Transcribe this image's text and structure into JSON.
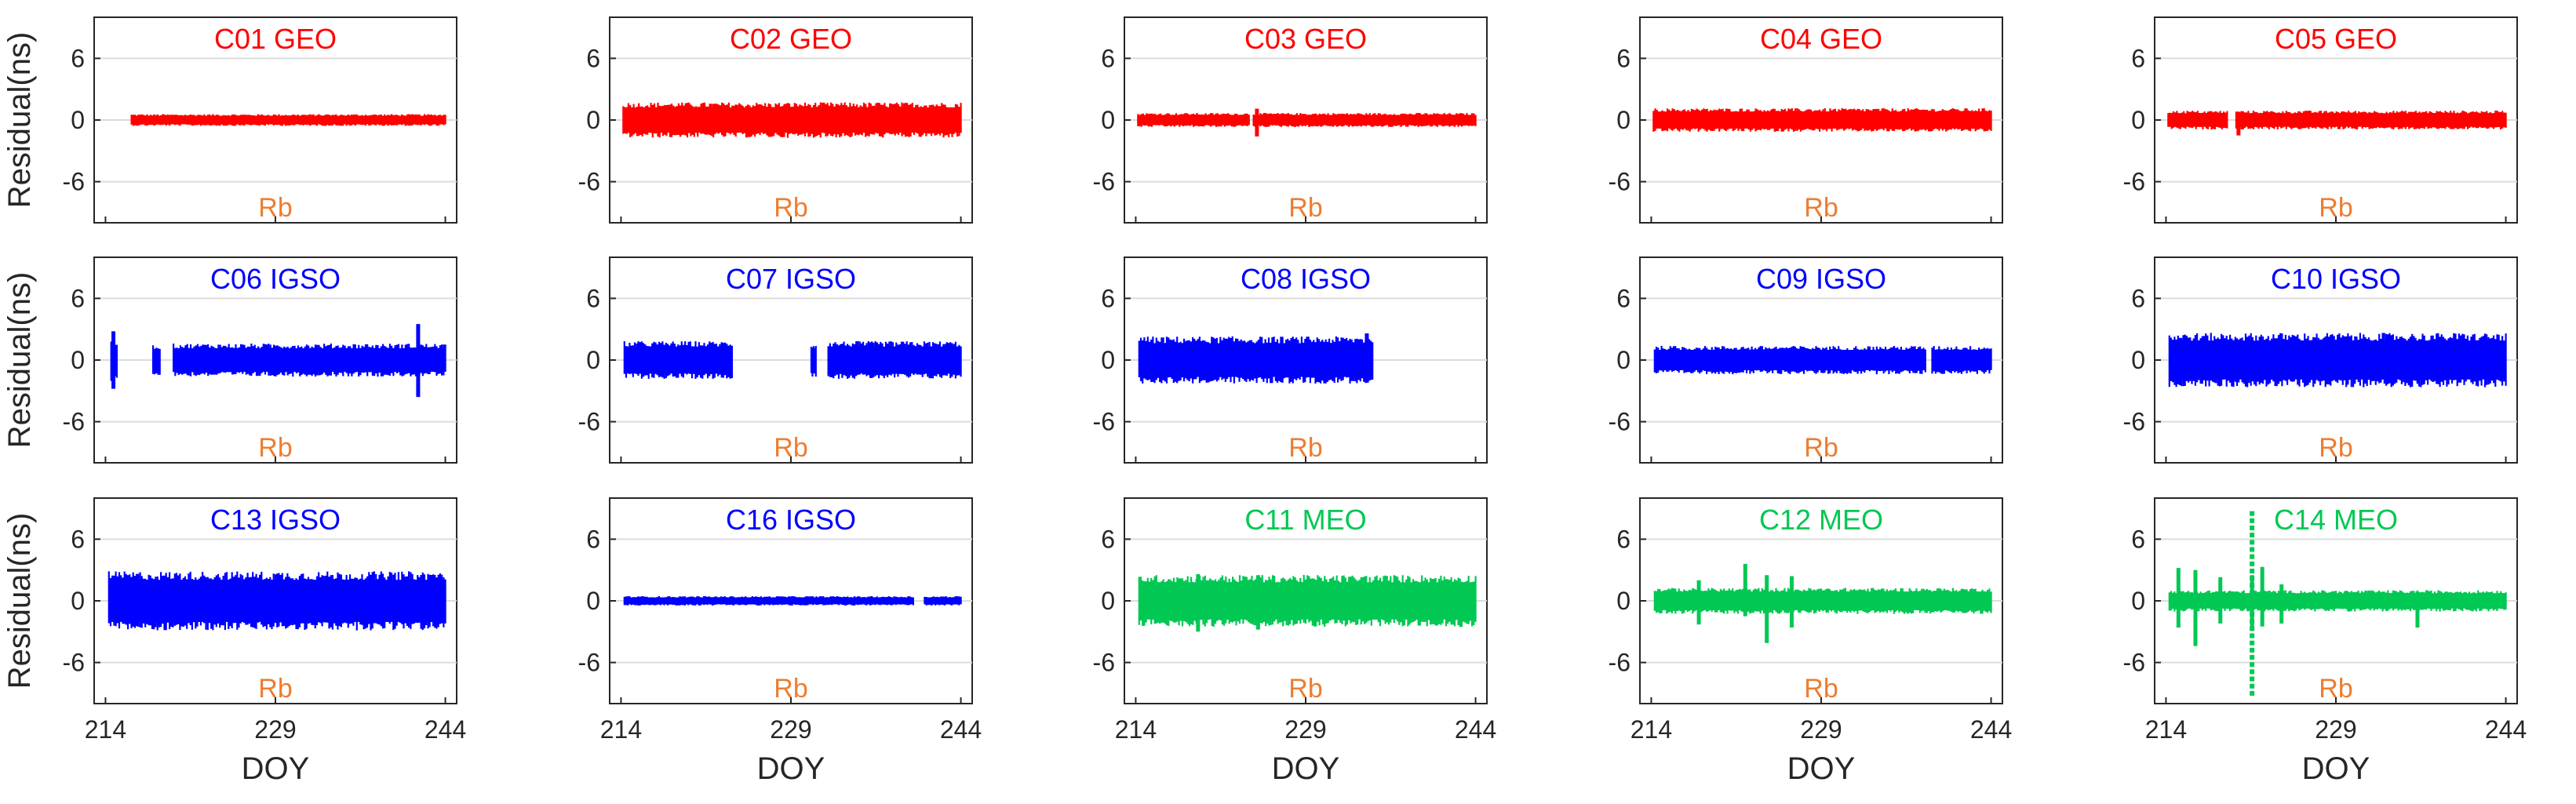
{
  "figure": {
    "ylabel": "Residual(ns)",
    "xlabel": "DOY",
    "colors": {
      "GEO": "#ff0000",
      "IGSO": "#0000ff",
      "MEO": "#00c853",
      "clock": "#ed7d31"
    }
  },
  "chart_data": [
    {
      "type": "scatter",
      "title": "C01 GEO",
      "orbit": "GEO",
      "clock_label": "Rb",
      "ylim": [
        -10,
        10
      ],
      "yticks": [
        6,
        0,
        -6
      ],
      "xlim": [
        213,
        245
      ],
      "xticks": [
        214,
        229,
        244
      ],
      "segments": [
        {
          "start": 216.3,
          "end": 244,
          "amp": 0.5
        }
      ],
      "spikes": []
    },
    {
      "type": "scatter",
      "title": "C02 GEO",
      "orbit": "GEO",
      "clock_label": "Rb",
      "ylim": [
        -10,
        10
      ],
      "yticks": [
        6,
        0,
        -6
      ],
      "xlim": [
        213,
        245
      ],
      "xticks": [
        214,
        229,
        244
      ],
      "segments": [
        {
          "start": 214.2,
          "end": 244,
          "amp": 1.5
        }
      ],
      "spikes": []
    },
    {
      "type": "scatter",
      "title": "C03 GEO",
      "orbit": "GEO",
      "clock_label": "Rb",
      "ylim": [
        -10,
        10
      ],
      "yticks": [
        6,
        0,
        -6
      ],
      "xlim": [
        213,
        245
      ],
      "xticks": [
        214,
        229,
        244
      ],
      "segments": [
        {
          "start": 214.2,
          "end": 224,
          "amp": 0.6
        },
        {
          "start": 224.4,
          "end": 244,
          "amp": 0.6
        }
      ],
      "spikes": [
        {
          "x": 224.7,
          "low": -1.6,
          "high": 1.1
        }
      ]
    },
    {
      "type": "scatter",
      "title": "C04 GEO",
      "orbit": "GEO",
      "clock_label": "Rb",
      "ylim": [
        -10,
        10
      ],
      "yticks": [
        6,
        0,
        -6
      ],
      "xlim": [
        213,
        245
      ],
      "xticks": [
        214,
        229,
        244
      ],
      "segments": [
        {
          "start": 214.2,
          "end": 244,
          "amp": 1.0
        }
      ],
      "spikes": []
    },
    {
      "type": "scatter",
      "title": "C05 GEO",
      "orbit": "GEO",
      "clock_label": "Rb",
      "ylim": [
        -10,
        10
      ],
      "yticks": [
        6,
        0,
        -6
      ],
      "xlim": [
        213,
        245
      ],
      "xticks": [
        214,
        229,
        244
      ],
      "segments": [
        {
          "start": 214.2,
          "end": 219.4,
          "amp": 0.8
        },
        {
          "start": 220.2,
          "end": 244,
          "amp": 0.8
        }
      ],
      "spikes": [
        {
          "x": 220.4,
          "low": -1.5,
          "high": 0.8
        }
      ]
    },
    {
      "type": "scatter",
      "title": "C06 IGSO",
      "orbit": "IGSO",
      "clock_label": "Rb",
      "ylim": [
        -10,
        10
      ],
      "yticks": [
        6,
        0,
        -6
      ],
      "xlim": [
        213,
        245
      ],
      "xticks": [
        214,
        229,
        244
      ],
      "segments": [
        {
          "start": 214.5,
          "end": 215.0,
          "amp": 1.8
        },
        {
          "start": 218.2,
          "end": 218.8,
          "amp": 1.3
        },
        {
          "start": 220,
          "end": 244,
          "amp": 1.4
        }
      ],
      "spikes": [
        {
          "x": 214.7,
          "low": -2.8,
          "high": 2.8
        },
        {
          "x": 241.6,
          "low": -3.6,
          "high": 3.5
        }
      ]
    },
    {
      "type": "scatter",
      "title": "C07 IGSO",
      "orbit": "IGSO",
      "clock_label": "Rb",
      "ylim": [
        -10,
        10
      ],
      "yticks": [
        6,
        0,
        -6
      ],
      "xlim": [
        213,
        245
      ],
      "xticks": [
        214,
        229,
        244
      ],
      "segments": [
        {
          "start": 214.3,
          "end": 223.8,
          "amp": 1.6
        },
        {
          "start": 230.8,
          "end": 231.2,
          "amp": 1.4
        },
        {
          "start": 232.3,
          "end": 244,
          "amp": 1.6
        }
      ],
      "spikes": []
    },
    {
      "type": "scatter",
      "title": "C08 IGSO",
      "orbit": "IGSO",
      "clock_label": "Rb",
      "ylim": [
        -10,
        10
      ],
      "yticks": [
        6,
        0,
        -6
      ],
      "xlim": [
        213,
        245
      ],
      "xticks": [
        214,
        229,
        244
      ],
      "segments": [
        {
          "start": 214.3,
          "end": 234.9,
          "amp": 2.0
        }
      ],
      "spikes": [
        {
          "x": 234.4,
          "low": -2.2,
          "high": 2.6
        }
      ]
    },
    {
      "type": "scatter",
      "title": "C09 IGSO",
      "orbit": "IGSO",
      "clock_label": "Rb",
      "ylim": [
        -10,
        10
      ],
      "yticks": [
        6,
        0,
        -6
      ],
      "xlim": [
        213,
        245
      ],
      "xticks": [
        214,
        229,
        244
      ],
      "segments": [
        {
          "start": 214.3,
          "end": 238.2,
          "amp": 1.2
        },
        {
          "start": 238.8,
          "end": 244,
          "amp": 1.2
        }
      ],
      "spikes": []
    },
    {
      "type": "scatter",
      "title": "C10 IGSO",
      "orbit": "IGSO",
      "clock_label": "Rb",
      "ylim": [
        -10,
        10
      ],
      "yticks": [
        6,
        0,
        -6
      ],
      "xlim": [
        213,
        245
      ],
      "xticks": [
        214,
        229,
        244
      ],
      "segments": [
        {
          "start": 214.3,
          "end": 244,
          "amp": 2.3
        }
      ],
      "spikes": []
    },
    {
      "type": "scatter",
      "title": "C13 IGSO",
      "orbit": "IGSO",
      "clock_label": "Rb",
      "ylim": [
        -10,
        10
      ],
      "yticks": [
        6,
        0,
        -6
      ],
      "xlim": [
        213,
        245
      ],
      "xticks": [
        214,
        229,
        244
      ],
      "segments": [
        {
          "start": 214.3,
          "end": 244,
          "amp": 2.5
        }
      ],
      "spikes": []
    },
    {
      "type": "scatter",
      "title": "C16 IGSO",
      "orbit": "IGSO",
      "clock_label": "Rb",
      "ylim": [
        -10,
        10
      ],
      "yticks": [
        6,
        0,
        -6
      ],
      "xlim": [
        213,
        245
      ],
      "xticks": [
        214,
        229,
        244
      ],
      "segments": [
        {
          "start": 214.3,
          "end": 239.8,
          "amp": 0.4
        },
        {
          "start": 240.8,
          "end": 244,
          "amp": 0.4
        }
      ],
      "spikes": []
    },
    {
      "type": "scatter",
      "title": "C11 MEO",
      "orbit": "MEO",
      "clock_label": "Rb",
      "ylim": [
        -10,
        10
      ],
      "yticks": [
        6,
        0,
        -6
      ],
      "xlim": [
        213,
        245
      ],
      "xticks": [
        214,
        229,
        244
      ],
      "segments": [
        {
          "start": 214.3,
          "end": 244,
          "amp": 2.2
        }
      ],
      "spikes": [
        {
          "x": 219.5,
          "low": -3.0,
          "high": 2.6
        },
        {
          "x": 224.8,
          "low": -2.8,
          "high": 2.5
        }
      ]
    },
    {
      "type": "scatter",
      "title": "C12 MEO",
      "orbit": "MEO",
      "clock_label": "Rb",
      "ylim": [
        -10,
        10
      ],
      "yticks": [
        6,
        0,
        -6
      ],
      "xlim": [
        213,
        245
      ],
      "xticks": [
        214,
        229,
        244
      ],
      "segments": [
        {
          "start": 214.3,
          "end": 244,
          "amp": 1.1
        }
      ],
      "spikes": [
        {
          "x": 218.2,
          "low": -2.3,
          "high": 2.0
        },
        {
          "x": 222.3,
          "low": -1.5,
          "high": 3.6
        },
        {
          "x": 224.2,
          "low": -4.1,
          "high": 2.5
        },
        {
          "x": 226.4,
          "low": -2.6,
          "high": 2.4
        }
      ]
    },
    {
      "type": "scatter",
      "title": "C14 MEO",
      "orbit": "MEO",
      "clock_label": "Rb",
      "ylim": [
        -10,
        10
      ],
      "yticks": [
        6,
        0,
        -6
      ],
      "xlim": [
        213,
        245
      ],
      "xticks": [
        214,
        229,
        244
      ],
      "segments": [
        {
          "start": 214.3,
          "end": 244,
          "amp": 0.9
        }
      ],
      "spikes": [
        {
          "x": 215.1,
          "low": -2.6,
          "high": 3.2
        },
        {
          "x": 216.6,
          "low": -4.4,
          "high": 3.0
        },
        {
          "x": 218.8,
          "low": -2.2,
          "high": 2.3
        },
        {
          "x": 221.6,
          "low": -9.0,
          "high": 8.6
        },
        {
          "x": 222.5,
          "low": -2.5,
          "high": 3.3
        },
        {
          "x": 224.2,
          "low": -2.2,
          "high": 1.6
        },
        {
          "x": 236.2,
          "low": -2.6,
          "high": 0.9
        }
      ]
    }
  ]
}
